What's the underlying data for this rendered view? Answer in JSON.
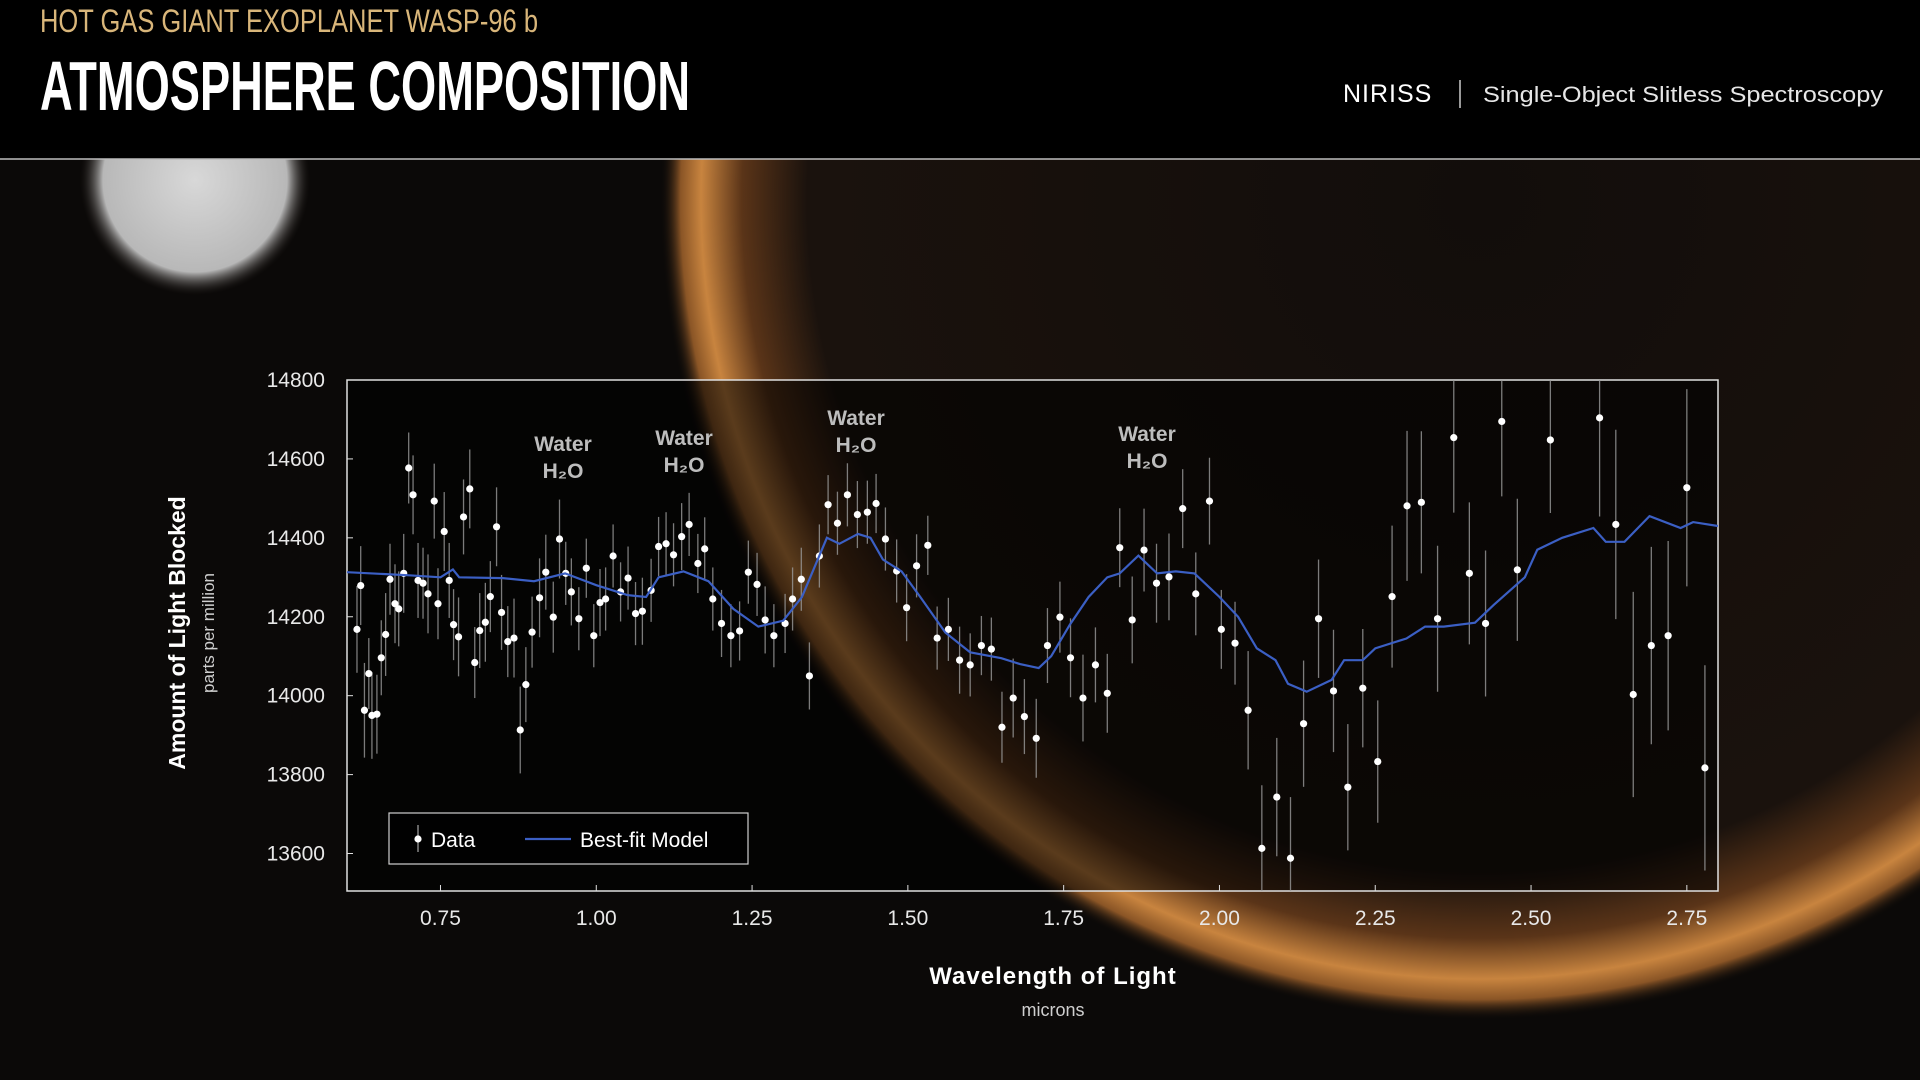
{
  "chart_data": {
    "type": "scatter",
    "supertitle": "HOT GAS GIANT EXOPLANET WASP-96 b",
    "title": "ATMOSPHERE COMPOSITION",
    "instrument": "NIRISS",
    "mode": "Single-Object Slitless Spectroscopy",
    "x_label": "Wavelength of Light",
    "x_unit": "microns",
    "y_label": "Amount of Light Blocked",
    "y_unit": "parts per million",
    "annotations": [
      {
        "label": "Water",
        "formula": "H₂O"
      },
      {
        "label": "Water",
        "formula": "H₂O"
      },
      {
        "label": "Water",
        "formula": "H₂O"
      },
      {
        "label": "Water",
        "formula": "H₂O"
      }
    ],
    "xlim": [
      0.6,
      2.8
    ],
    "ylim": [
      13505,
      14800
    ],
    "xticks": [
      0.75,
      {
        "value": 1.0,
        "label": "1.00"
      },
      1.25,
      {
        "value": 1.5,
        "label": "1.50"
      },
      1.75,
      {
        "value": 2.0,
        "label": "2.00"
      },
      2.25,
      {
        "value": 2.5,
        "label": "2.50"
      },
      2.75
    ],
    "yticks": [
      13600,
      13800,
      14000,
      14200,
      14400,
      14600,
      14800
    ],
    "legend": "lower left",
    "series": [
      {
        "name": "Data",
        "type": "scatter",
        "color": "#ffffff",
        "x": [
          0.616,
          0.622,
          0.628,
          0.635,
          0.64,
          0.648,
          0.655,
          0.662,
          0.669,
          0.677,
          0.683,
          0.691,
          0.699,
          0.706,
          0.714,
          0.722,
          0.73,
          0.74,
          0.746,
          0.756,
          0.764,
          0.771,
          0.779,
          0.787,
          0.797,
          0.805,
          0.813,
          0.822,
          0.83,
          0.84,
          0.848,
          0.858,
          0.868,
          0.878,
          0.887,
          0.897,
          0.909,
          0.919,
          0.931,
          0.941,
          0.951,
          0.96,
          0.972,
          0.984,
          0.996,
          1.006,
          1.015,
          1.027,
          1.039,
          1.051,
          1.063,
          1.074,
          1.088,
          1.1,
          1.112,
          1.124,
          1.137,
          1.149,
          1.163,
          1.174,
          1.187,
          1.201,
          1.216,
          1.23,
          1.244,
          1.258,
          1.271,
          1.285,
          1.303,
          1.315,
          1.329,
          1.342,
          1.358,
          1.372,
          1.387,
          1.403,
          1.419,
          1.435,
          1.449,
          1.464,
          1.482,
          1.498,
          1.514,
          1.532,
          1.547,
          1.565,
          1.583,
          1.6,
          1.618,
          1.634,
          1.651,
          1.669,
          1.687,
          1.706,
          1.724,
          1.744,
          1.761,
          1.781,
          1.801,
          1.82,
          1.84,
          1.86,
          1.879,
          1.899,
          1.919,
          1.941,
          1.962,
          1.984,
          2.003,
          2.025,
          2.046,
          2.068,
          2.092,
          2.114,
          2.135,
          2.159,
          2.183,
          2.206,
          2.23,
          2.254,
          2.277,
          2.301,
          2.324,
          2.35,
          2.376,
          2.401,
          2.427,
          2.453,
          2.478,
          2.531,
          2.61,
          2.636,
          2.664,
          2.693,
          2.72,
          2.75,
          2.779
        ],
        "values": [
          14168,
          14279,
          13963,
          14056,
          13950,
          13953,
          14096,
          14155,
          14295,
          14233,
          14220,
          14310,
          14577,
          14509,
          14292,
          14285,
          14258,
          14493,
          14233,
          14416,
          14292,
          14180,
          14149,
          14453,
          14524,
          14084,
          14165,
          14186,
          14251,
          14428,
          14211,
          14137,
          14146,
          13913,
          14028,
          14161,
          14248,
          14313,
          14199,
          14397,
          14310,
          14263,
          14195,
          14323,
          14152,
          14236,
          14245,
          14354,
          14263,
          14298,
          14208,
          14214,
          14267,
          14378,
          14385,
          14357,
          14403,
          14434,
          14335,
          14372,
          14245,
          14183,
          14152,
          14164,
          14313,
          14282,
          14192,
          14152,
          14183,
          14245,
          14295,
          14050,
          14354,
          14484,
          14437,
          14509,
          14459,
          14465,
          14487,
          14397,
          14316,
          14223,
          14329,
          14381,
          14146,
          14168,
          14090,
          14078,
          14127,
          14118,
          13920,
          13994,
          13947,
          13892,
          14127,
          14199,
          14096,
          13994,
          14078,
          14006,
          14375,
          14192,
          14369,
          14285,
          14301,
          14474,
          14258,
          14493,
          14168,
          14133,
          13963,
          13613,
          13743,
          13588,
          13929,
          14195,
          14012,
          13768,
          14019,
          13833,
          14251,
          14481,
          14490,
          14195,
          14654,
          14310,
          14183,
          14695,
          14319,
          14648,
          14704,
          14434,
          14003,
          14127,
          14152,
          14527,
          13817
        ],
        "errors": [
          110,
          100,
          120,
          90,
          110,
          100,
          95,
          105,
          90,
          100,
          95,
          100,
          90,
          100,
          95,
          90,
          100,
          95,
          90,
          100,
          95,
          90,
          100,
          95,
          100,
          90,
          95,
          100,
          90,
          100,
          95,
          90,
          100,
          110,
          95,
          90,
          100,
          95,
          90,
          100,
          80,
          85,
          80,
          75,
          80,
          85,
          80,
          80,
          75,
          80,
          80,
          85,
          80,
          75,
          80,
          80,
          85,
          80,
          75,
          80,
          80,
          85,
          80,
          75,
          80,
          80,
          85,
          80,
          75,
          80,
          80,
          85,
          80,
          75,
          80,
          80,
          85,
          80,
          75,
          80,
          80,
          85,
          80,
          75,
          80,
          80,
          85,
          80,
          75,
          80,
          90,
          100,
          95,
          100,
          95,
          90,
          100,
          110,
          95,
          100,
          100,
          110,
          105,
          100,
          110,
          100,
          105,
          110,
          100,
          105,
          150,
          160,
          150,
          155,
          160,
          150,
          155,
          160,
          150,
          155,
          180,
          190,
          180,
          185,
          190,
          180,
          185,
          190,
          180,
          185,
          250,
          240,
          260,
          250,
          240,
          250,
          260
        ]
      },
      {
        "name": "Best-fit Model",
        "type": "line",
        "color": "#3b5fc4",
        "x": [
          0.6,
          0.7,
          0.75,
          0.77,
          0.78,
          0.85,
          0.9,
          0.95,
          1.0,
          1.05,
          1.08,
          1.1,
          1.14,
          1.18,
          1.22,
          1.26,
          1.3,
          1.33,
          1.37,
          1.39,
          1.42,
          1.44,
          1.46,
          1.49,
          1.52,
          1.56,
          1.6,
          1.65,
          1.68,
          1.71,
          1.73,
          1.76,
          1.79,
          1.82,
          1.84,
          1.87,
          1.9,
          1.93,
          1.96,
          2.0,
          2.03,
          2.06,
          2.09,
          2.11,
          2.14,
          2.18,
          2.2,
          2.23,
          2.25,
          2.3,
          2.33,
          2.36,
          2.41,
          2.44,
          2.49,
          2.51,
          2.55,
          2.6,
          2.62,
          2.65,
          2.69,
          2.74,
          2.76,
          2.8
        ],
        "values": [
          14313,
          14305,
          14300,
          14320,
          14300,
          14298,
          14290,
          14310,
          14280,
          14255,
          14250,
          14300,
          14315,
          14290,
          14220,
          14175,
          14190,
          14250,
          14400,
          14385,
          14410,
          14400,
          14345,
          14315,
          14250,
          14160,
          14110,
          14095,
          14080,
          14070,
          14100,
          14180,
          14250,
          14300,
          14310,
          14355,
          14310,
          14315,
          14310,
          14250,
          14200,
          14120,
          14090,
          14030,
          14010,
          14040,
          14090,
          14090,
          14120,
          14145,
          14175,
          14175,
          14185,
          14230,
          14300,
          14370,
          14400,
          14425,
          14390,
          14390,
          14455,
          14425,
          14440,
          14430
        ]
      }
    ]
  }
}
